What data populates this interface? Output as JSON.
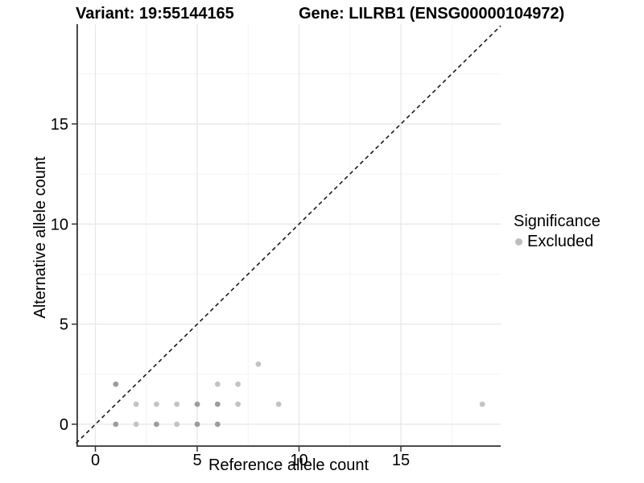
{
  "header": {
    "title_left": "Variant: 19:55144165",
    "title_right": "Gene: LILRB1 (ENSG00000104972)"
  },
  "chart_data": {
    "type": "scatter",
    "title_left": "Variant: 19:55144165",
    "title_right": "Gene: LILRB1 (ENSG00000104972)",
    "xlabel": "Reference allele count",
    "ylabel": "Alternative allele count",
    "xlim": [
      -0.95,
      19.95
    ],
    "ylim": [
      -0.95,
      19.95
    ],
    "x_major_ticks": [
      0,
      5,
      10,
      15
    ],
    "y_major_ticks": [
      0,
      5,
      10,
      15
    ],
    "x_minor_gridlines": [
      2.5,
      7.5,
      12.5,
      17.5
    ],
    "y_minor_gridlines": [
      2.5,
      7.5,
      12.5,
      17.5
    ],
    "grid": "major+minor",
    "identity_line": {
      "equation": "y = x",
      "style": "dashed"
    },
    "legend": {
      "title": "Significance",
      "position": "right",
      "items": [
        {
          "label": "Excluded",
          "marker_color": "#bdbdbd"
        }
      ]
    },
    "series": [
      {
        "name": "Excluded",
        "points": [
          {
            "x": 1,
            "y": 0,
            "shade": "dark"
          },
          {
            "x": 2,
            "y": 0,
            "shade": "light"
          },
          {
            "x": 3,
            "y": 0,
            "shade": "dark"
          },
          {
            "x": 4,
            "y": 0,
            "shade": "light"
          },
          {
            "x": 5,
            "y": 0,
            "shade": "dark"
          },
          {
            "x": 6,
            "y": 0,
            "shade": "dark"
          },
          {
            "x": 2,
            "y": 1,
            "shade": "light"
          },
          {
            "x": 3,
            "y": 1,
            "shade": "light"
          },
          {
            "x": 4,
            "y": 1,
            "shade": "light"
          },
          {
            "x": 5,
            "y": 1,
            "shade": "dark"
          },
          {
            "x": 6,
            "y": 1,
            "shade": "dark"
          },
          {
            "x": 7,
            "y": 1,
            "shade": "light"
          },
          {
            "x": 9,
            "y": 1,
            "shade": "light"
          },
          {
            "x": 19,
            "y": 1,
            "shade": "light"
          },
          {
            "x": 1,
            "y": 2,
            "shade": "dark"
          },
          {
            "x": 6,
            "y": 2,
            "shade": "light"
          },
          {
            "x": 7,
            "y": 2,
            "shade": "light"
          },
          {
            "x": 8,
            "y": 3,
            "shade": "light"
          }
        ]
      }
    ]
  },
  "colors": {
    "background": "#ffffff",
    "text": "#000000",
    "point_light": "#c3c3c3",
    "point_dark": "#9c9c9c",
    "legend_marker": "#bdbdbd",
    "grid_major": "#e7e7e7",
    "grid_minor": "#f4f4f4",
    "axis_line": "#333333",
    "identity_line": "#1a1a1a"
  }
}
